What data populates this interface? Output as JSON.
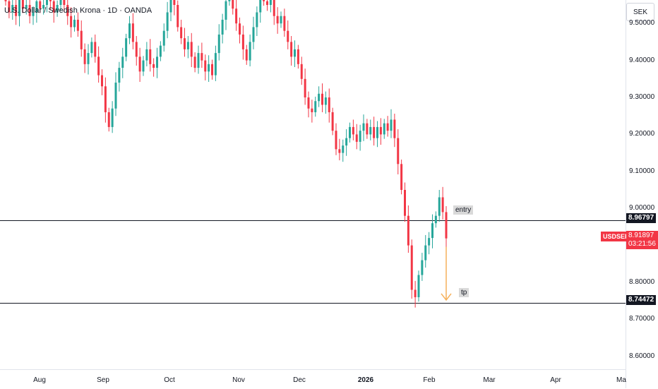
{
  "title": "U.S. Dollar / Swedish Krona · 1D · OANDA",
  "currency_button": "SEK",
  "colors": {
    "up": "#26a69a",
    "down": "#f23645",
    "arrow": "#f6b15a",
    "line": "#131722"
  },
  "chart_data": {
    "type": "candlestick",
    "symbol": "USDSEK",
    "y_ticks": [
      "9.50000",
      "9.40000",
      "9.30000",
      "9.20000",
      "9.10000",
      "9.00000",
      "8.80000",
      "8.70000",
      "8.60000"
    ],
    "x_ticks": [
      "Aug",
      "Sep",
      "Oct",
      "Nov",
      "Dec",
      "2026",
      "Feb",
      "Mar",
      "Apr",
      "Ma"
    ],
    "ylim": [
      8.55,
      9.6
    ],
    "horizontal_lines": [
      {
        "price": 8.96797,
        "label": "8.96797",
        "annotation": "entry"
      },
      {
        "price": 8.74472,
        "label": "8.74472",
        "annotation": "tp"
      }
    ],
    "last_price": "8.91897",
    "countdown": "03:21:56",
    "arrow": {
      "from": 8.91897,
      "to": 8.74472
    },
    "closes": [
      9.56,
      9.53,
      9.55,
      9.52,
      9.57,
      9.54,
      9.55,
      9.52,
      9.53,
      9.56,
      9.54,
      9.55,
      9.58,
      9.56,
      9.53,
      9.55,
      9.57,
      9.55,
      9.52,
      9.49,
      9.51,
      9.48,
      9.43,
      9.39,
      9.42,
      9.45,
      9.41,
      9.36,
      9.33,
      9.26,
      9.22,
      9.27,
      9.34,
      9.38,
      9.41,
      9.46,
      9.5,
      9.45,
      9.41,
      9.37,
      9.4,
      9.43,
      9.39,
      9.38,
      9.41,
      9.44,
      9.48,
      9.53,
      9.58,
      9.55,
      9.49,
      9.46,
      9.43,
      9.45,
      9.41,
      9.38,
      9.42,
      9.4,
      9.37,
      9.39,
      9.36,
      9.42,
      9.47,
      9.51,
      9.56,
      9.59,
      9.54,
      9.5,
      9.47,
      9.43,
      9.4,
      9.45,
      9.49,
      9.53,
      9.58,
      9.56,
      9.55,
      9.57,
      9.52,
      9.5,
      9.52,
      9.48,
      9.45,
      9.41,
      9.43,
      9.39,
      9.35,
      9.3,
      9.27,
      9.26,
      9.29,
      9.31,
      9.28,
      9.3,
      9.26,
      9.21,
      9.16,
      9.15,
      9.17,
      9.19,
      9.22,
      9.2,
      9.18,
      9.21,
      9.23,
      9.2,
      9.22,
      9.19,
      9.22,
      9.2,
      9.23,
      9.21,
      9.24,
      9.19,
      9.12,
      9.05,
      8.98,
      8.9,
      8.78,
      8.76,
      8.82,
      8.86,
      8.9,
      8.92,
      8.96,
      8.98,
      9.03,
      8.99,
      8.91897
    ]
  }
}
